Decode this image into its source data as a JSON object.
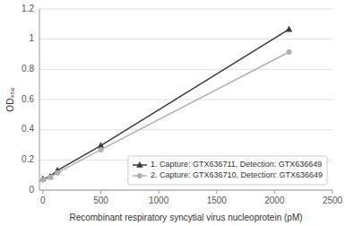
{
  "chart_data": {
    "type": "line",
    "x_label": "Recombinant respiratory syncytial virus nucleoprotein (pM)",
    "y_label": "OD₄₅₀",
    "x": [
      0,
      62.5,
      125,
      500,
      2125
    ],
    "series": [
      {
        "name": "1. Capture: GTX636711, Detection: GTX636649",
        "color": "#3a3a3a",
        "marker": "triangle",
        "values": [
          0.075,
          0.09,
          0.13,
          0.295,
          1.065
        ]
      },
      {
        "name": "2. Capture: GTX636710, Detection: GTX636649",
        "color": "#b0b0b0",
        "marker": "circle",
        "values": [
          0.068,
          0.085,
          0.115,
          0.268,
          0.915
        ]
      }
    ],
    "xlim": [
      -30,
      2500
    ],
    "xticks": [
      0,
      500,
      1000,
      1500,
      2000,
      2500
    ],
    "ylim": [
      0,
      1.2
    ],
    "yticks": [
      0,
      0.2,
      0.4,
      0.6,
      0.8,
      1,
      1.2
    ],
    "grid": true,
    "legend": "lower right"
  }
}
